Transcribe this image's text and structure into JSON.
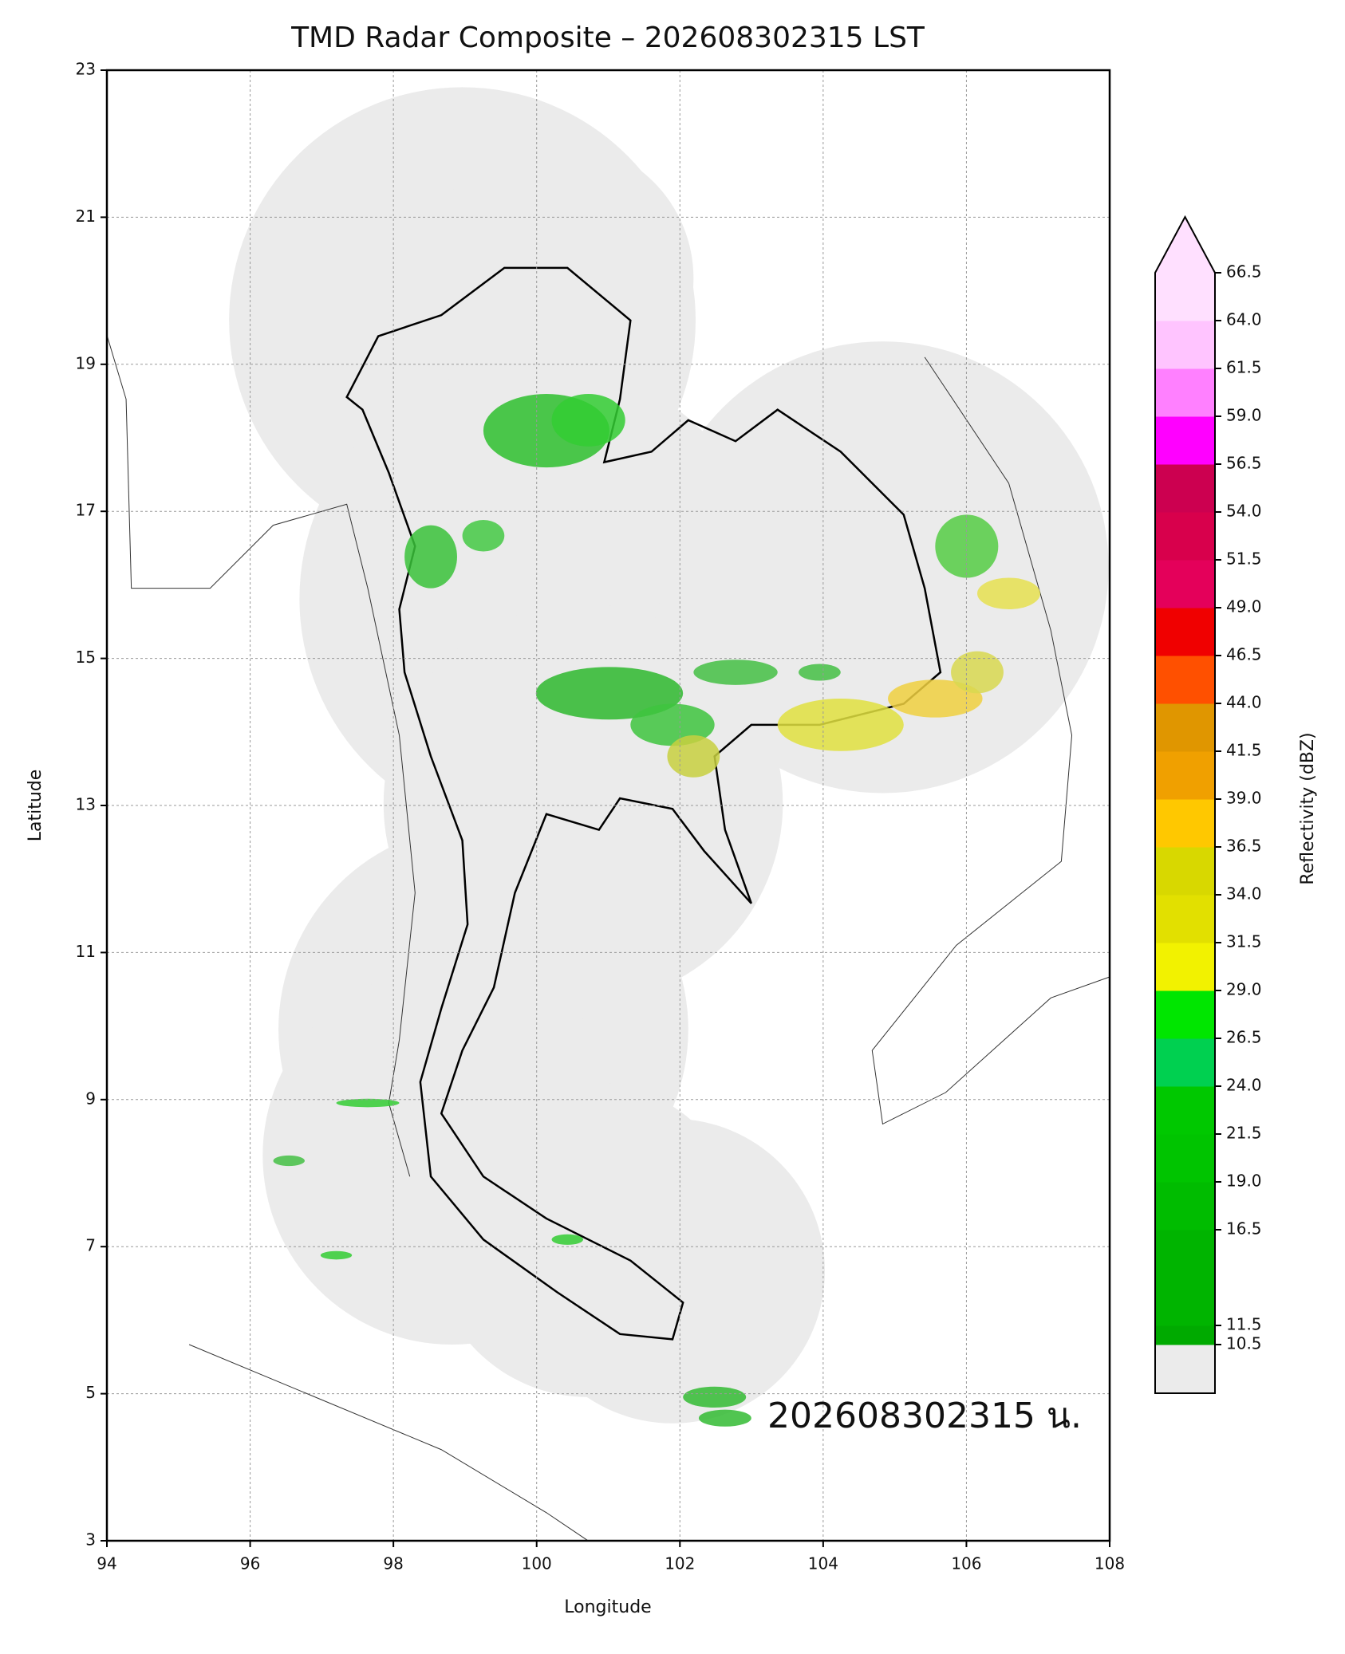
{
  "map": {
    "title": "TMD Radar Composite – 202608302315 LST",
    "xlabel": "Longitude",
    "ylabel": "Latitude",
    "xlim": [
      94,
      108
    ],
    "ylim": [
      3,
      23
    ],
    "xticks": [
      94,
      96,
      98,
      100,
      102,
      104,
      106,
      108
    ],
    "yticks": [
      3,
      5,
      7,
      9,
      11,
      13,
      15,
      17,
      19,
      21,
      23
    ],
    "grid": true,
    "annotation": "202608302315 น.",
    "colorbar": {
      "label": "Reflectivity (dBZ)",
      "levels": [
        10.5,
        11.5,
        16.5,
        {
          "value": 19,
          "label": "19.0"
        },
        21.5,
        {
          "value": 24,
          "label": "24.0"
        },
        26.5,
        {
          "value": 29,
          "label": "29.0"
        },
        31.5,
        {
          "value": 34,
          "label": "34.0"
        },
        36.5,
        {
          "value": 39,
          "label": "39.0"
        },
        41.5,
        {
          "value": 44,
          "label": "44.0"
        },
        46.5,
        {
          "value": 49,
          "label": "49.0"
        },
        51.5,
        {
          "value": 54,
          "label": "54.0"
        },
        56.5,
        {
          "value": 59,
          "label": "59.0"
        },
        61.5,
        {
          "value": 64,
          "label": "64.0"
        },
        66.5
      ],
      "colors": [
        "#00aa00",
        "#00b400",
        "#00bc00",
        "#00c400",
        "#00c800",
        "#00d050",
        "#00e600",
        "#f2f200",
        "#e2e000",
        "#d8d800",
        "#ffc800",
        "#f0a000",
        "#e09600",
        "#ff5000",
        "#f00000",
        "#e4005a",
        "#d8004c",
        "#cc0050",
        "#ff00ff",
        "#ff80ff",
        "#ffc4ff",
        "#ffe0ff"
      ],
      "under_color": "#ebebeb",
      "over_color": "#ffe0ff"
    }
  }
}
